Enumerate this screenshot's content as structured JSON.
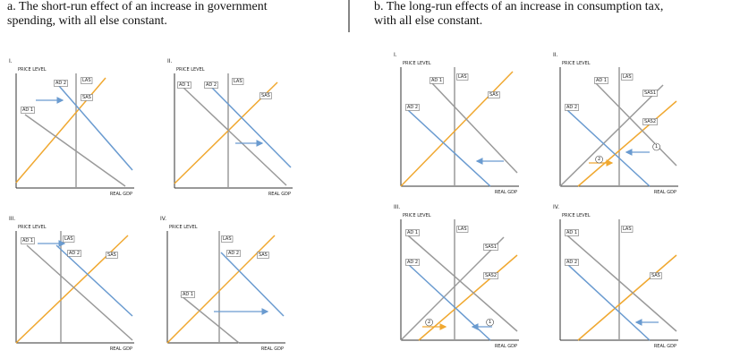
{
  "panels": [
    {
      "title": "a. The short-run effect of an increase in government spending, with all else constant.",
      "graphs": [
        {
          "numeral": "I.",
          "y_axis": "PRICE LEVEL",
          "x_axis": "REAL GDP",
          "labels": [
            "AD 2",
            "LAS",
            "SAS",
            "AD 1"
          ]
        },
        {
          "numeral": "II.",
          "y_axis": "PRICE LEVEL",
          "x_axis": "REAL GDP",
          "labels": [
            "AD 1",
            "AD 2",
            "LAS",
            "SAS"
          ]
        },
        {
          "numeral": "III.",
          "y_axis": "PRICE LEVEL",
          "x_axis": "REAL GDP",
          "labels": [
            "AD 1",
            "LAS",
            "AD 2",
            "SAS"
          ]
        },
        {
          "numeral": "IV.",
          "y_axis": "PRICE LEVEL",
          "x_axis": "REAL GDP",
          "labels": [
            "LAS",
            "AD 2",
            "SAS",
            "AD 1"
          ]
        }
      ]
    },
    {
      "title": "b. The long-run effects of an increase in consumption tax, with all else constant.",
      "graphs": [
        {
          "numeral": "I.",
          "y_axis": "PRICE LEVEL",
          "x_axis": "REAL GDP",
          "labels": [
            "AD 1",
            "LAS",
            "SAS",
            "AD 2"
          ]
        },
        {
          "numeral": "II.",
          "y_axis": "PRICE LEVEL",
          "x_axis": "REAL GDP",
          "labels": [
            "AD 1",
            "LAS",
            "SAS1",
            "AD 2",
            "SAS2",
            "1",
            "2"
          ]
        },
        {
          "numeral": "III.",
          "y_axis": "PRICE LEVEL",
          "x_axis": "REAL GDP",
          "labels": [
            "AD 1",
            "LAS",
            "SAS1",
            "AD 2",
            "SAS2",
            "2",
            "1"
          ]
        },
        {
          "numeral": "IV.",
          "y_axis": "PRICE LEVEL",
          "x_axis": "REAL GDP",
          "labels": [
            "AD 1",
            "LAS",
            "AD 2",
            "SAS"
          ]
        }
      ]
    }
  ]
}
